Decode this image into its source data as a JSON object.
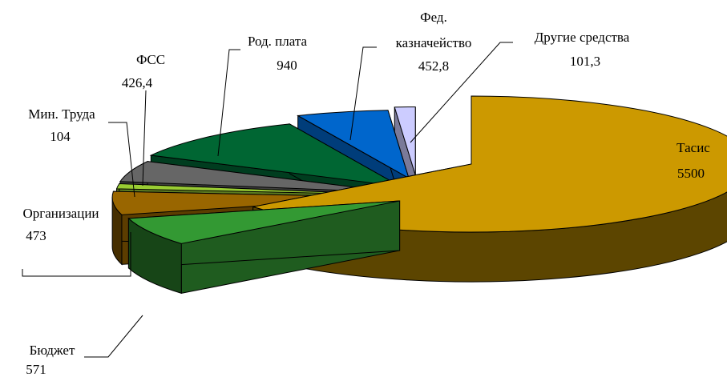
{
  "chart_data": {
    "type": "pie",
    "style": "3d-exploded",
    "title": "",
    "slices": [
      {
        "key": "tasis",
        "label": "Тасис",
        "value": 5500,
        "display_value": "5500",
        "color": "#CC9900"
      },
      {
        "key": "budget",
        "label": "Бюджет",
        "value": 571,
        "display_value": "571",
        "color": "#339933"
      },
      {
        "key": "organizations",
        "label": "Организации",
        "value": 473,
        "display_value": "473",
        "color": "#996600"
      },
      {
        "key": "min_truda",
        "label": "Мин. Труда",
        "value": 104,
        "display_value": "104",
        "color": "#99CC33"
      },
      {
        "key": "fss",
        "label": "ФСС",
        "value": 426.4,
        "display_value": "426,4",
        "color": "#666666"
      },
      {
        "key": "rod_plata",
        "label": "Род. плата",
        "value": 940,
        "display_value": "940",
        "color": "#006633"
      },
      {
        "key": "fed_kazn",
        "label_lines": [
          "Фед.",
          "казначейство"
        ],
        "value": 452.8,
        "display_value": "452,8",
        "color": "#0066CC"
      },
      {
        "key": "other",
        "label": "Другие средства",
        "value": 101.3,
        "display_value": "101,3",
        "color": "#CCCCFF"
      }
    ]
  }
}
